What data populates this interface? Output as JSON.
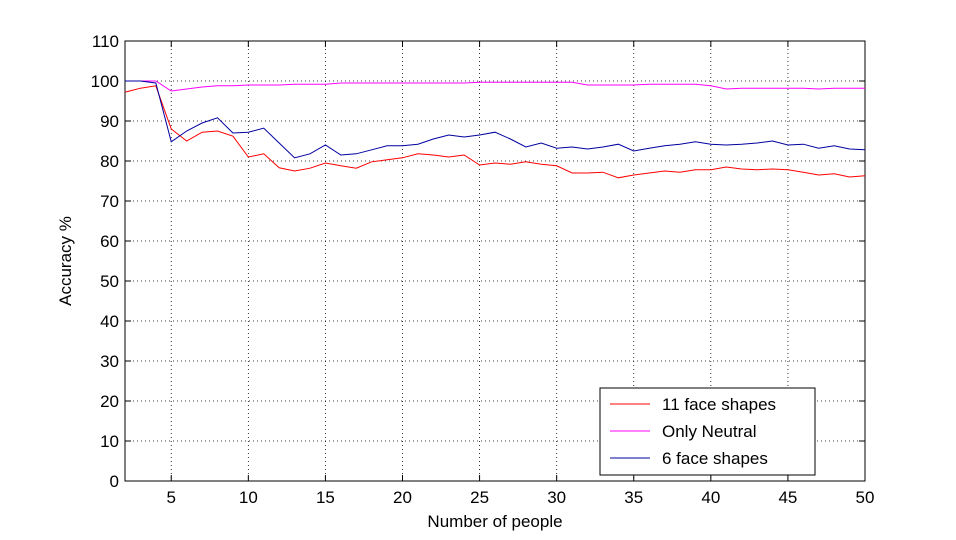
{
  "chart_data": {
    "type": "line",
    "xlabel": "Number of people",
    "ylabel": "Accuracy %",
    "xlim": [
      2,
      50
    ],
    "ylim": [
      0,
      110
    ],
    "x_ticks": [
      "5",
      "10",
      "15",
      "20",
      "25",
      "30",
      "35",
      "40",
      "45",
      "50"
    ],
    "y_ticks": [
      "0",
      "10",
      "20",
      "30",
      "40",
      "50",
      "60",
      "70",
      "80",
      "90",
      "100",
      "110"
    ],
    "grid": true,
    "legend_position": "bottom-right",
    "x": [
      2,
      3,
      4,
      5,
      6,
      7,
      8,
      9,
      10,
      11,
      12,
      13,
      14,
      15,
      16,
      17,
      18,
      19,
      20,
      21,
      22,
      23,
      24,
      25,
      26,
      27,
      28,
      29,
      30,
      31,
      32,
      33,
      34,
      35,
      36,
      37,
      38,
      39,
      40,
      41,
      42,
      43,
      44,
      45,
      46,
      47,
      48,
      49,
      50
    ],
    "series": [
      {
        "name": "11 face shapes",
        "color": "#ff0000",
        "values": [
          97.2,
          98.2,
          98.8,
          88.0,
          85.0,
          87.2,
          87.5,
          86.2,
          81.0,
          81.8,
          78.3,
          77.5,
          78.2,
          79.5,
          78.8,
          78.2,
          79.8,
          80.3,
          80.8,
          81.8,
          81.5,
          81.0,
          81.5,
          79.0,
          79.5,
          79.2,
          79.8,
          79.2,
          78.8,
          77.0,
          77.0,
          77.2,
          75.8,
          76.5,
          77.0,
          77.5,
          77.2,
          77.8,
          77.8,
          78.5,
          78.0,
          77.8,
          78.0,
          77.8,
          77.2,
          76.5,
          76.8,
          76.0,
          76.3
        ]
      },
      {
        "name": "Only Neutral",
        "color": "#ff00ff",
        "values": [
          100,
          100,
          100,
          97.5,
          98.0,
          98.5,
          98.8,
          98.8,
          99.0,
          99.0,
          99.0,
          99.2,
          99.2,
          99.2,
          99.5,
          99.5,
          99.5,
          99.5,
          99.5,
          99.5,
          99.5,
          99.5,
          99.5,
          99.7,
          99.7,
          99.7,
          99.7,
          99.7,
          99.7,
          99.7,
          99.0,
          99.0,
          99.0,
          99.0,
          99.2,
          99.2,
          99.2,
          99.2,
          98.8,
          98.0,
          98.2,
          98.2,
          98.2,
          98.2,
          98.2,
          98.0,
          98.2,
          98.2,
          98.2
        ]
      },
      {
        "name": "6 face shapes",
        "color": "#0000a0",
        "values": [
          100,
          100,
          99.5,
          84.8,
          87.5,
          89.5,
          90.8,
          87.0,
          87.2,
          88.2,
          84.5,
          80.8,
          81.8,
          84.0,
          81.5,
          81.8,
          82.8,
          83.8,
          83.8,
          84.2,
          85.5,
          86.5,
          86.0,
          86.5,
          87.2,
          85.5,
          83.5,
          84.5,
          83.2,
          83.5,
          83.0,
          83.5,
          84.2,
          82.5,
          83.2,
          83.8,
          84.2,
          84.8,
          84.2,
          84.0,
          84.2,
          84.5,
          85.0,
          84.0,
          84.2,
          83.2,
          83.8,
          83.0,
          82.8
        ]
      }
    ]
  }
}
